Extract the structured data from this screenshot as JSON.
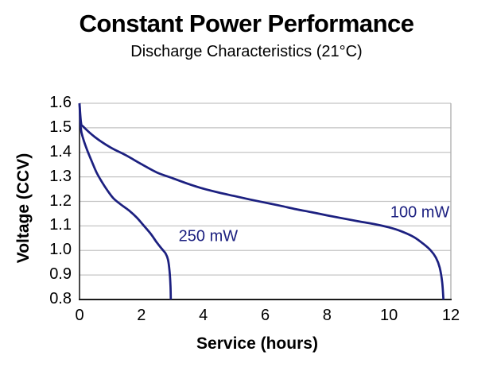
{
  "page": {
    "background": "#ffffff"
  },
  "chart_data": {
    "type": "line",
    "title": "Constant Power Performance",
    "subtitle": "Discharge Characteristics (21°C)",
    "xlabel": "Service (hours)",
    "ylabel": "Voltage (CCV)",
    "xlim": [
      0,
      12
    ],
    "ylim": [
      0.8,
      1.6
    ],
    "xticks": [
      "0",
      "2",
      "4",
      "6",
      "8",
      "10",
      "12"
    ],
    "yticks": [
      "1.6",
      "1.5",
      "1.4",
      "1.3",
      "1.2",
      "1.1",
      "1.0",
      "0.9",
      "0.8"
    ],
    "grid": "horizontal-only",
    "legend": "inline-curve-labels",
    "colors": {
      "line": "#1c2080",
      "grid": "#c4c4c4",
      "right_border": "#b0b0b0",
      "axis": "#1a1a1a",
      "text": "#000000"
    },
    "series": [
      {
        "name": "250 mW",
        "label": {
          "x": 4.16,
          "y": 1.056
        },
        "points": [
          [
            0,
            1.6
          ],
          [
            0.04,
            1.5
          ],
          [
            0.12,
            1.455
          ],
          [
            0.25,
            1.408
          ],
          [
            0.4,
            1.362
          ],
          [
            0.55,
            1.318
          ],
          [
            0.72,
            1.28
          ],
          [
            0.9,
            1.245
          ],
          [
            1.1,
            1.212
          ],
          [
            1.35,
            1.186
          ],
          [
            1.6,
            1.163
          ],
          [
            1.85,
            1.134
          ],
          [
            2.05,
            1.105
          ],
          [
            2.3,
            1.068
          ],
          [
            2.5,
            1.032
          ],
          [
            2.65,
            1.008
          ],
          [
            2.78,
            0.988
          ],
          [
            2.86,
            0.962
          ],
          [
            2.91,
            0.915
          ],
          [
            2.94,
            0.855
          ],
          [
            2.95,
            0.8
          ]
        ]
      },
      {
        "name": "100 mW",
        "label": {
          "x": 11.0,
          "y": 1.153
        },
        "points": [
          [
            0,
            1.6
          ],
          [
            0.05,
            1.52
          ],
          [
            0.12,
            1.505
          ],
          [
            0.5,
            1.462
          ],
          [
            1.0,
            1.42
          ],
          [
            1.5,
            1.388
          ],
          [
            2.0,
            1.352
          ],
          [
            2.5,
            1.318
          ],
          [
            3.0,
            1.295
          ],
          [
            3.5,
            1.272
          ],
          [
            4.0,
            1.252
          ],
          [
            4.5,
            1.236
          ],
          [
            5.0,
            1.222
          ],
          [
            5.5,
            1.208
          ],
          [
            6.0,
            1.195
          ],
          [
            6.5,
            1.182
          ],
          [
            7.0,
            1.168
          ],
          [
            7.5,
            1.156
          ],
          [
            8.0,
            1.143
          ],
          [
            8.5,
            1.131
          ],
          [
            9.0,
            1.119
          ],
          [
            9.5,
            1.108
          ],
          [
            10.0,
            1.094
          ],
          [
            10.4,
            1.078
          ],
          [
            10.8,
            1.055
          ],
          [
            11.1,
            1.028
          ],
          [
            11.35,
            1.0
          ],
          [
            11.52,
            0.97
          ],
          [
            11.64,
            0.93
          ],
          [
            11.72,
            0.87
          ],
          [
            11.76,
            0.8
          ]
        ]
      }
    ]
  }
}
